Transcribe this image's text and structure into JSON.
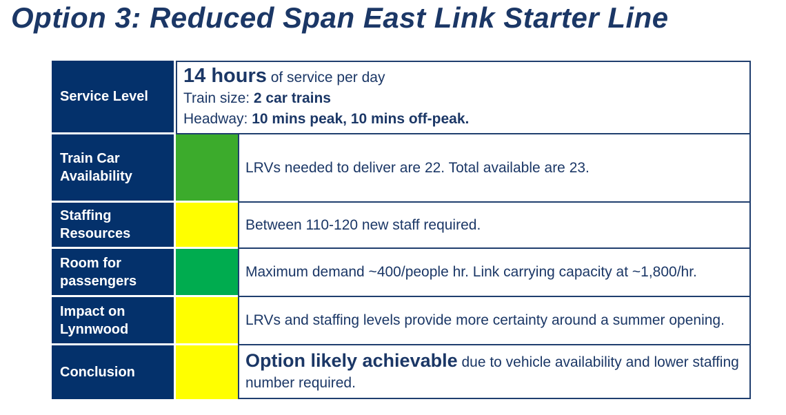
{
  "title": "Option 3: Reduced Span East Link Starter Line",
  "colors": {
    "navy_cell": "#04316B",
    "border_navy": "#1F3E6E",
    "text_navy": "#1B3766",
    "status_green_bright": "#3CAB2C",
    "status_green_emerald": "#00AC4F",
    "status_yellow": "#FFFF00"
  },
  "table": {
    "service_level": {
      "label": "Service Level",
      "line1_bold": "14 hours",
      "line1_rest": " of service per day",
      "line2_prefix": "Train size: ",
      "line2_bold": "2 car trains",
      "line3_prefix": "Headway: ",
      "line3_bold": "10 mins peak, 10 mins off-peak."
    },
    "rows": [
      {
        "label": "Train Car Availability",
        "status": "green",
        "status_color": "#3CAB2C",
        "text": "LRVs needed to deliver are 22. Total available are 23."
      },
      {
        "label": "Staffing Resources",
        "status": "yellow",
        "status_color": "#FFFF00",
        "text": "Between 110-120 new staff required."
      },
      {
        "label": "Room for passengers",
        "status": "green",
        "status_color": "#00AC4F",
        "text": "Maximum demand ~400/people hr. Link carrying capacity at ~1,800/hr."
      },
      {
        "label": "Impact on Lynnwood",
        "status": "yellow",
        "status_color": "#FFFF00",
        "text": "LRVs and staffing levels provide more certainty around a summer opening."
      }
    ],
    "conclusion": {
      "label": "Conclusion",
      "status": "yellow",
      "status_color": "#FFFF00",
      "text_bold": "Option likely achievable",
      "text_rest": " due to vehicle availability and lower staffing number required."
    }
  }
}
